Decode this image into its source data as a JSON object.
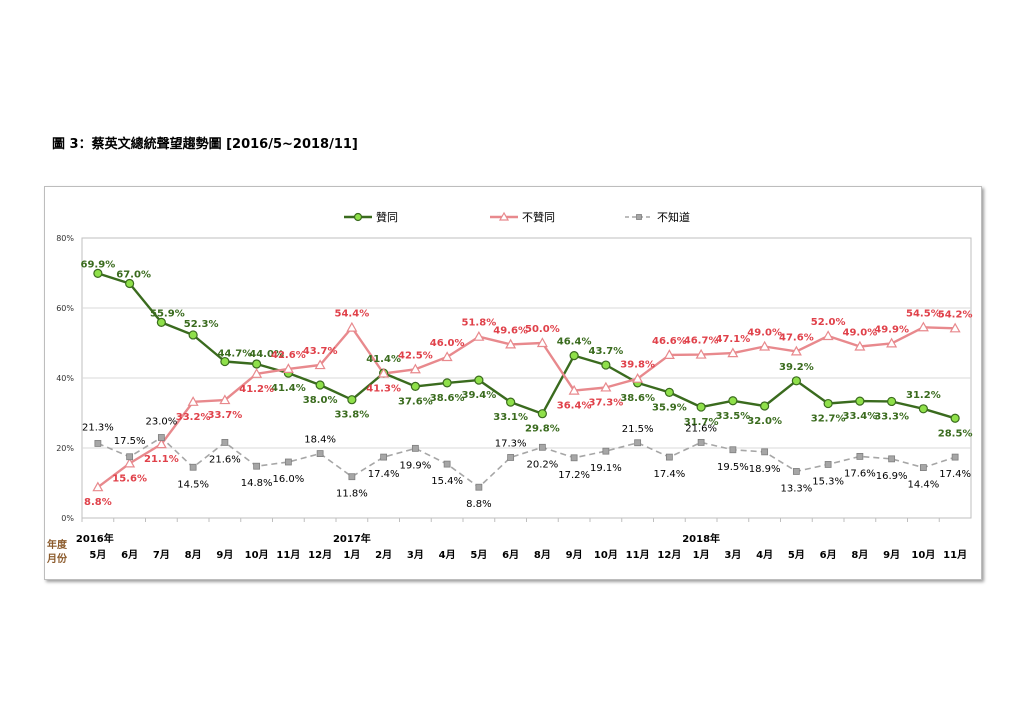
{
  "figure_title": "圖 3：蔡英文總統聲望趨勢圖  [2016/5~2018/11]",
  "chart_data": {
    "type": "line",
    "categories": [
      "5月",
      "6月",
      "7月",
      "8月",
      "9月",
      "10月",
      "11月",
      "12月",
      "1月",
      "2月",
      "3月",
      "4月",
      "5月",
      "6月",
      "8月",
      "9月",
      "10月",
      "11月",
      "12月",
      "1月",
      "3月",
      "4月",
      "5月",
      "6月",
      "8月",
      "9月",
      "10月",
      "11月"
    ],
    "years": [
      {
        "label": "2016年",
        "index": 0
      },
      {
        "label": "2017年",
        "index": 8
      },
      {
        "label": "2018年",
        "index": 19
      }
    ],
    "row_label_year": "年度",
    "row_label_month": "月份",
    "ylim": [
      0,
      80
    ],
    "yticks": [
      "0%",
      "20%",
      "40%",
      "60%",
      "80%"
    ],
    "grid": true,
    "legend_position": "top",
    "series": [
      {
        "name": "贊同",
        "color": "#3a6b1e",
        "marker": "circle",
        "marker_fill": "#8fe04a",
        "dashed": false,
        "label_color": "#3a6b1e",
        "values": [
          69.9,
          67.0,
          55.9,
          52.3,
          44.7,
          44.0,
          41.4,
          38.0,
          33.8,
          41.4,
          37.6,
          38.6,
          39.4,
          33.1,
          29.8,
          46.4,
          43.7,
          38.6,
          35.9,
          31.7,
          33.5,
          32.0,
          39.2,
          32.7,
          33.4,
          33.3,
          31.2,
          28.5
        ],
        "labels": [
          "69.9%",
          "67.0%",
          "55.9%",
          "52.3%",
          "44.7%",
          "44.0%",
          "41.4%",
          "38.0%",
          "33.8%",
          "41.4%",
          "37.6%",
          "38.6%",
          "39.4%",
          "33.1%",
          "29.8%",
          "46.4%",
          "43.7%",
          "38.6%",
          "35.9%",
          "31.7%",
          "33.5%",
          "32.0%",
          "39.2%",
          "32.7%",
          "33.4%",
          "33.3%",
          "31.2%",
          "28.5%"
        ]
      },
      {
        "name": "不贊同",
        "color": "#e8898d",
        "marker": "triangle",
        "marker_fill": "#ffffff",
        "dashed": false,
        "label_color": "#e0414a",
        "values": [
          8.8,
          15.6,
          21.1,
          33.2,
          33.7,
          41.2,
          42.6,
          43.7,
          54.4,
          41.3,
          42.5,
          46.0,
          51.8,
          49.6,
          50.0,
          36.4,
          37.3,
          39.8,
          46.6,
          46.7,
          47.1,
          49.0,
          47.6,
          52.0,
          49.0,
          49.9,
          54.5,
          54.2
        ],
        "labels": [
          "8.8%",
          "15.6%",
          "21.1%",
          "33.2%",
          "33.7%",
          "41.2%",
          "42.6%",
          "43.7%",
          "54.4%",
          "41.3%",
          "42.5%",
          "46.0%",
          "51.8%",
          "49.6%",
          "50.0%",
          "36.4%",
          "37.3%",
          "39.8%",
          "46.6%",
          "46.7%",
          "47.1%",
          "49.0%",
          "47.6%",
          "52.0%",
          "49.0%",
          "49.9%",
          "54.5%",
          "54.2%"
        ]
      },
      {
        "name": "不知道",
        "color": "#a6a6a6",
        "marker": "square",
        "marker_fill": "#a6a6a6",
        "dashed": true,
        "label_color": "#000000",
        "values": [
          21.3,
          17.5,
          23.0,
          14.5,
          21.6,
          14.8,
          16.0,
          18.4,
          11.8,
          17.4,
          19.9,
          15.4,
          8.8,
          17.3,
          20.2,
          17.2,
          19.1,
          21.5,
          17.4,
          21.6,
          19.5,
          18.9,
          13.3,
          15.3,
          17.6,
          16.9,
          14.4,
          17.4
        ],
        "labels": [
          "21.3%",
          "17.5%",
          "23.0%",
          "14.5%",
          "21.6%",
          "14.8%",
          "16.0%",
          "18.4%",
          "11.8%",
          "17.4%",
          "19.9%",
          "15.4%",
          "8.8%",
          "17.3%",
          "20.2%",
          "17.2%",
          "19.1%",
          "21.5%",
          "17.4%",
          "21.6%",
          "19.5%",
          "18.9%",
          "13.3%",
          "15.3%",
          "17.6%",
          "16.9%",
          "14.4%",
          "17.4%"
        ]
      }
    ]
  }
}
